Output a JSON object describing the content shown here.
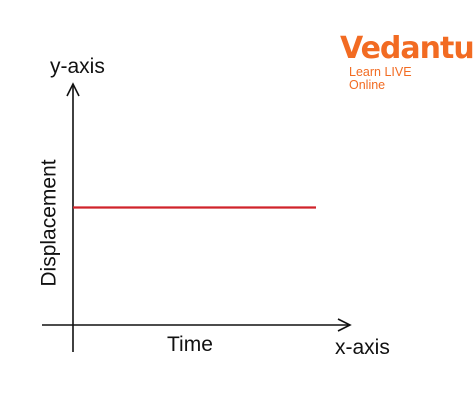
{
  "chart_data": {
    "type": "line",
    "title": "",
    "xlabel": "Time",
    "ylabel": "Displacement",
    "x_axis_name": "x-axis",
    "y_axis_name": "y-axis",
    "xlim": [
      0,
      10
    ],
    "ylim": [
      0,
      10
    ],
    "grid": false,
    "series": [
      {
        "x": [
          0,
          9
        ],
        "y": [
          5,
          5
        ],
        "color": "#d0232a"
      }
    ]
  },
  "logo": {
    "wordmark": "Vedantu",
    "tagline": "Learn LIVE Online",
    "color": "#f26b22"
  },
  "colors": {
    "axis": "#111111",
    "line": "#d0232a"
  }
}
